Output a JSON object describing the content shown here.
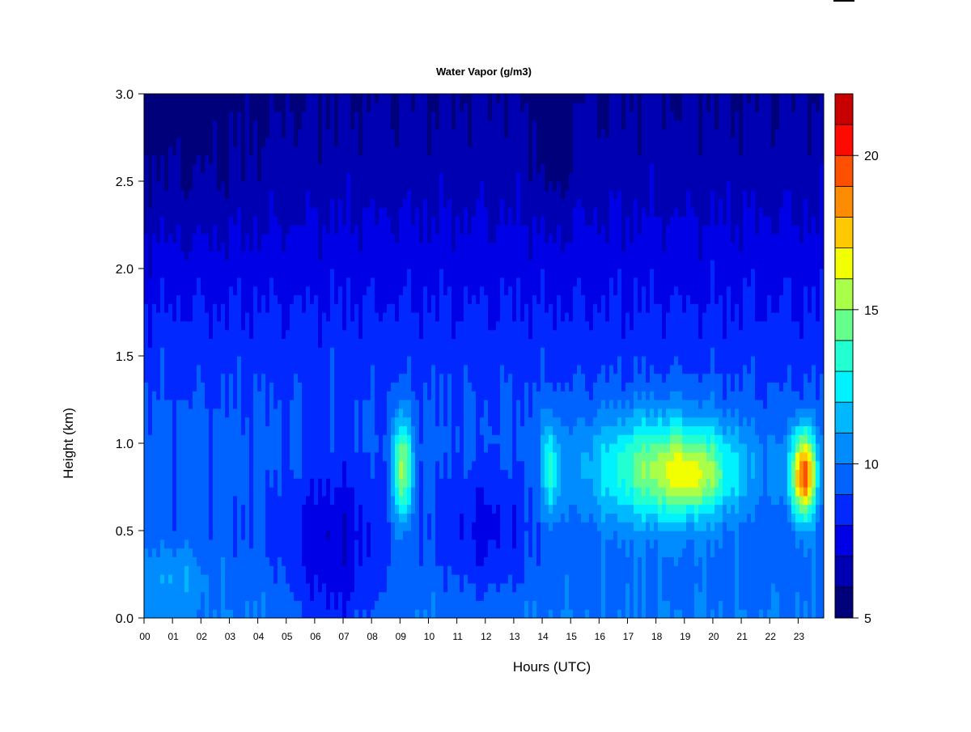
{
  "chart_data": {
    "type": "heatmap",
    "title": "Water Vapor (g/m3)",
    "xlabel": "Hours (UTC)",
    "ylabel": "Height (km)",
    "xlim": [
      0,
      23.9
    ],
    "ylim": [
      0,
      3
    ],
    "x_ticks": [
      "00",
      "01",
      "02",
      "03",
      "04",
      "05",
      "06",
      "07",
      "08",
      "09",
      "10",
      "11",
      "12",
      "13",
      "14",
      "15",
      "16",
      "17",
      "18",
      "19",
      "20",
      "21",
      "22",
      "23"
    ],
    "y_ticks": [
      "0.0",
      "0.5",
      "1.0",
      "1.5",
      "2.0",
      "2.5",
      "3.0"
    ],
    "colorbar": {
      "label_values": [
        "5",
        "10",
        "15",
        "20"
      ],
      "range": [
        5,
        22
      ],
      "levels": [
        5,
        6,
        7,
        8,
        9,
        10,
        11,
        12,
        13,
        14,
        15,
        16,
        17,
        18,
        19,
        20,
        21,
        22
      ],
      "colors": [
        "#00007A",
        "#0000B3",
        "#0000E6",
        "#0028FF",
        "#0062FF",
        "#008CFF",
        "#00B8FF",
        "#00F2FF",
        "#22FFD0",
        "#66FF8C",
        "#AAFF48",
        "#F2FF00",
        "#FFC800",
        "#FF8C00",
        "#FF5000",
        "#FF0A00",
        "#C80000",
        "#800000"
      ]
    },
    "grid": false,
    "value_estimate": {
      "background_by_height": [
        {
          "height": 0.0,
          "value": 10.0
        },
        {
          "height": 0.5,
          "value": 9.2
        },
        {
          "height": 1.0,
          "value": 9.4
        },
        {
          "height": 1.5,
          "value": 8.6
        },
        {
          "height": 2.0,
          "value": 7.6
        },
        {
          "height": 2.5,
          "value": 6.6
        },
        {
          "height": 3.0,
          "value": 6.0
        }
      ],
      "features": [
        {
          "hour": 9.1,
          "height": 0.85,
          "hour_spread": 0.35,
          "height_spread": 0.3,
          "value": 6.2
        },
        {
          "hour": 14.3,
          "height": 0.85,
          "hour_spread": 0.3,
          "height_spread": 0.3,
          "value": 3.6
        },
        {
          "hour": 18.3,
          "height": 0.85,
          "hour_spread": 2.6,
          "height_spread": 0.32,
          "value": 5.6
        },
        {
          "hour": 23.2,
          "height": 0.82,
          "hour_spread": 0.45,
          "height_spread": 0.25,
          "value": 10.0
        },
        {
          "hour": 19.4,
          "height": 0.82,
          "hour_spread": 1.2,
          "height_spread": 0.2,
          "value": 2.5
        },
        {
          "hour": 6.7,
          "height": 0.35,
          "hour_spread": 1.6,
          "height_spread": 0.6,
          "value": -2.2
        },
        {
          "hour": 12.0,
          "height": 0.5,
          "hour_spread": 1.6,
          "height_spread": 0.4,
          "value": -1.5
        },
        {
          "hour": 14.4,
          "height": 2.8,
          "hour_spread": 0.6,
          "height_spread": 0.5,
          "value": -1.2
        },
        {
          "hour": 1.5,
          "height": 2.7,
          "hour_spread": 3.0,
          "height_spread": 0.6,
          "value": -0.6
        },
        {
          "hour": 1.0,
          "height": 0.25,
          "hour_spread": 1.0,
          "height_spread": 0.2,
          "value": 1.4
        }
      ]
    }
  }
}
